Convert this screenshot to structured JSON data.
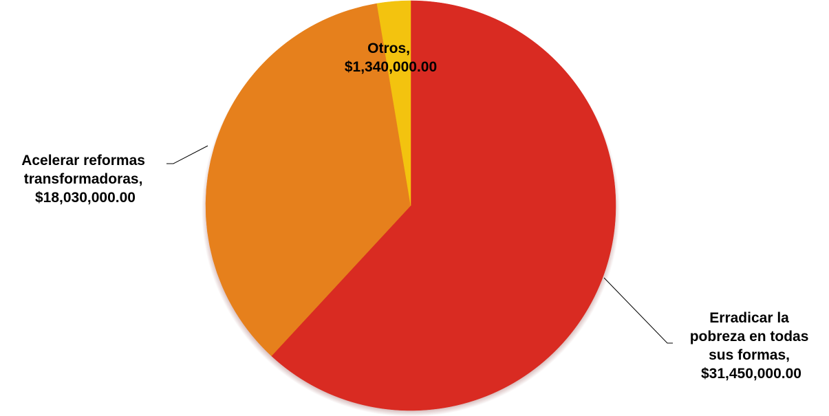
{
  "chart_data": {
    "type": "pie",
    "title": "",
    "slices": [
      {
        "label_lines": [
          "Erradicar la",
          "pobreza en todas",
          "sus formas,"
        ],
        "value_text": "$31,450,000.00",
        "value": 31450000,
        "color": "#d92b22"
      },
      {
        "label_lines": [
          "Acelerar reformas",
          "transformadoras,"
        ],
        "value_text": "$18,030,000.00",
        "value": 18030000,
        "color": "#e6801c"
      },
      {
        "label_lines": [
          "Otros,"
        ],
        "value_text": "$1,340,000.00",
        "value": 1340000,
        "color": "#f3c30f"
      }
    ]
  }
}
